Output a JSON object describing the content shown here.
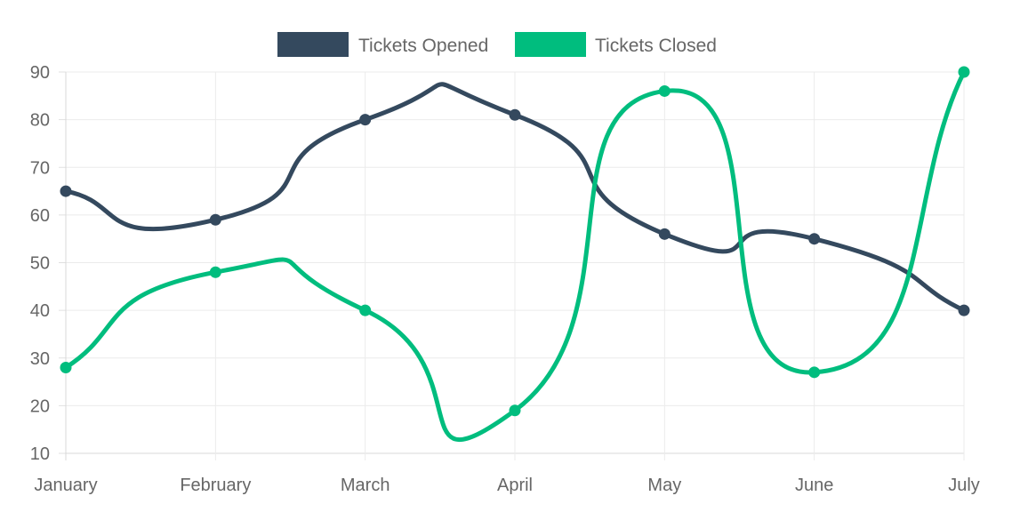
{
  "chart_data": {
    "type": "line",
    "title": "",
    "xlabel": "",
    "ylabel": "",
    "categories": [
      "January",
      "February",
      "March",
      "April",
      "May",
      "June",
      "July"
    ],
    "ylim": [
      10,
      90
    ],
    "yticks": [
      10,
      20,
      30,
      40,
      50,
      60,
      70,
      80,
      90
    ],
    "grid": true,
    "legend_position": "top-center",
    "curve": "smooth",
    "series": [
      {
        "name": "Tickets Opened",
        "color": "#34495e",
        "values": [
          65,
          59,
          80,
          81,
          56,
          55,
          40
        ]
      },
      {
        "name": "Tickets Closed",
        "color": "#00bd7e",
        "values": [
          28,
          48,
          40,
          19,
          86,
          27,
          90
        ]
      }
    ]
  }
}
